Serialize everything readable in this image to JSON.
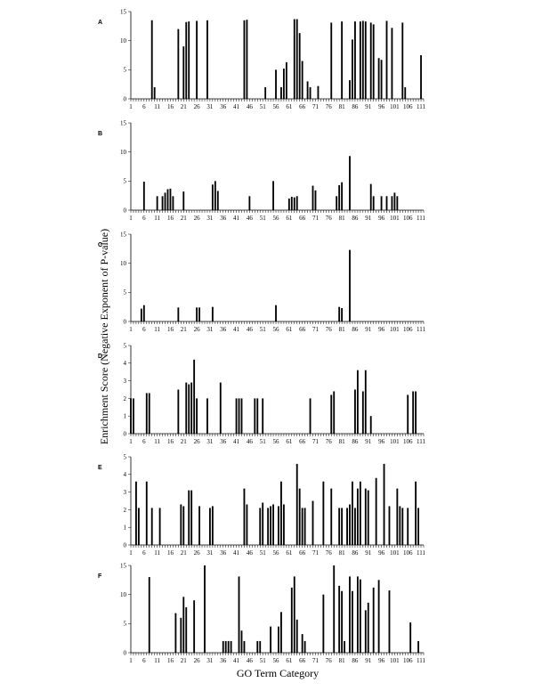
{
  "figure": {
    "xlabel": "GO Term Category",
    "ylabel": "Enrichment Score (Negative Exponent of P-value)",
    "x_tick_labels": [
      1,
      6,
      11,
      16,
      21,
      26,
      31,
      36,
      41,
      46,
      51,
      56,
      61,
      66,
      71,
      76,
      81,
      86,
      91,
      96,
      101,
      106,
      111
    ]
  },
  "chart_data": [
    {
      "panel": "A",
      "type": "bar",
      "xlim": [
        1,
        112
      ],
      "ylim": [
        0,
        15
      ],
      "yticks": [
        0,
        5,
        10,
        15
      ],
      "points": [
        [
          9,
          13.5
        ],
        [
          10,
          2
        ],
        [
          19,
          12
        ],
        [
          21,
          9
        ],
        [
          22,
          13.2
        ],
        [
          23,
          13.3
        ],
        [
          26,
          13.4
        ],
        [
          30,
          13.5
        ],
        [
          44,
          13.5
        ],
        [
          45,
          13.6
        ],
        [
          52,
          2
        ],
        [
          56,
          5
        ],
        [
          58,
          2
        ],
        [
          59,
          5.2
        ],
        [
          60,
          6.3
        ],
        [
          63,
          13.7
        ],
        [
          64,
          13.7
        ],
        [
          65,
          11.3
        ],
        [
          66,
          6.5
        ],
        [
          68,
          3
        ],
        [
          69,
          2
        ],
        [
          72,
          2.2
        ],
        [
          77,
          13.1
        ],
        [
          81,
          13.3
        ],
        [
          84,
          3.2
        ],
        [
          85,
          10.2
        ],
        [
          86,
          13.3
        ],
        [
          88,
          13.3
        ],
        [
          89,
          13.4
        ],
        [
          90,
          13.3
        ],
        [
          92,
          13.1
        ],
        [
          93,
          12.8
        ],
        [
          95,
          7
        ],
        [
          96,
          6.7
        ],
        [
          98,
          13.4
        ],
        [
          100,
          12.2
        ],
        [
          104,
          13.1
        ],
        [
          105,
          2
        ],
        [
          111,
          7.5
        ]
      ]
    },
    {
      "panel": "B",
      "type": "bar",
      "xlim": [
        1,
        112
      ],
      "ylim": [
        0,
        15
      ],
      "yticks": [
        0,
        5,
        10,
        15
      ],
      "points": [
        [
          6,
          4.9
        ],
        [
          11,
          2.4
        ],
        [
          13,
          2.4
        ],
        [
          14,
          3
        ],
        [
          15,
          3.6
        ],
        [
          16,
          3.7
        ],
        [
          17,
          2.4
        ],
        [
          21,
          3.2
        ],
        [
          32,
          4.4
        ],
        [
          33,
          5
        ],
        [
          34,
          3.3
        ],
        [
          46,
          2.4
        ],
        [
          55,
          5
        ],
        [
          61,
          2
        ],
        [
          62,
          2.3
        ],
        [
          63,
          2.2
        ],
        [
          64,
          2.4
        ],
        [
          70,
          4.2
        ],
        [
          71,
          3.4
        ],
        [
          79,
          2.4
        ],
        [
          80,
          4.3
        ],
        [
          81,
          4.8
        ],
        [
          84,
          9.3
        ],
        [
          92,
          4.5
        ],
        [
          93,
          2.4
        ],
        [
          96,
          2.4
        ],
        [
          98,
          2.4
        ],
        [
          100,
          2.4
        ],
        [
          101,
          3
        ],
        [
          102,
          2.4
        ]
      ]
    },
    {
      "panel": "C",
      "type": "bar",
      "xlim": [
        1,
        112
      ],
      "ylim": [
        0,
        15
      ],
      "yticks": [
        0,
        5,
        10,
        15
      ],
      "points": [
        [
          5,
          2.2
        ],
        [
          6,
          2.8
        ],
        [
          19,
          2.4
        ],
        [
          26,
          2.4
        ],
        [
          27,
          2.4
        ],
        [
          32,
          2.5
        ],
        [
          56,
          2.8
        ],
        [
          80,
          2.5
        ],
        [
          81,
          2.3
        ],
        [
          84,
          12.3
        ]
      ]
    },
    {
      "panel": "D",
      "type": "bar",
      "xlim": [
        1,
        112
      ],
      "ylim": [
        0,
        5
      ],
      "yticks": [
        0,
        1,
        2,
        3,
        4,
        5
      ],
      "points": [
        [
          1,
          2
        ],
        [
          2,
          2
        ],
        [
          7,
          2.3
        ],
        [
          8,
          2.3
        ],
        [
          19,
          2.5
        ],
        [
          22,
          2.9
        ],
        [
          23,
          2.8
        ],
        [
          24,
          2.9
        ],
        [
          25,
          4.2
        ],
        [
          26,
          2
        ],
        [
          30,
          2
        ],
        [
          35,
          2.9
        ],
        [
          41,
          2
        ],
        [
          42,
          2
        ],
        [
          43,
          2
        ],
        [
          48,
          2
        ],
        [
          49,
          2
        ],
        [
          51,
          2
        ],
        [
          69,
          2
        ],
        [
          77,
          2.2
        ],
        [
          78,
          2.4
        ],
        [
          86,
          2.5
        ],
        [
          87,
          3.6
        ],
        [
          89,
          2.4
        ],
        [
          90,
          3.6
        ],
        [
          92,
          1
        ],
        [
          106,
          2.2
        ],
        [
          108,
          2.4
        ],
        [
          109,
          2.4
        ]
      ]
    },
    {
      "panel": "E",
      "type": "bar",
      "xlim": [
        1,
        112
      ],
      "ylim": [
        0,
        5
      ],
      "yticks": [
        0,
        1,
        2,
        3,
        4,
        5
      ],
      "points": [
        [
          3,
          3.6
        ],
        [
          4,
          2.1
        ],
        [
          7,
          3.6
        ],
        [
          9,
          2.1
        ],
        [
          12,
          2.1
        ],
        [
          20,
          2.3
        ],
        [
          21,
          2.2
        ],
        [
          23,
          3.1
        ],
        [
          24,
          3.1
        ],
        [
          27,
          2.2
        ],
        [
          31,
          2.1
        ],
        [
          32,
          2.2
        ],
        [
          44,
          3.2
        ],
        [
          45,
          2.3
        ],
        [
          50,
          2.1
        ],
        [
          51,
          2.4
        ],
        [
          53,
          2.1
        ],
        [
          54,
          2.2
        ],
        [
          55,
          2.3
        ],
        [
          57,
          2.2
        ],
        [
          58,
          3.6
        ],
        [
          59,
          2.3
        ],
        [
          64,
          4.6
        ],
        [
          65,
          3.2
        ],
        [
          66,
          2.1
        ],
        [
          67,
          2.1
        ],
        [
          70,
          2.5
        ],
        [
          74,
          3.6
        ],
        [
          77,
          3.2
        ],
        [
          80,
          2.1
        ],
        [
          81,
          2.1
        ],
        [
          83,
          2.1
        ],
        [
          84,
          2.3
        ],
        [
          85,
          3.6
        ],
        [
          86,
          2.1
        ],
        [
          87,
          3.2
        ],
        [
          88,
          3.6
        ],
        [
          90,
          3.2
        ],
        [
          91,
          3.1
        ],
        [
          94,
          3.8
        ],
        [
          97,
          4.6
        ],
        [
          99,
          2.2
        ],
        [
          102,
          3.2
        ],
        [
          103,
          2.2
        ],
        [
          104,
          2.1
        ],
        [
          106,
          2.1
        ],
        [
          109,
          3.6
        ],
        [
          110,
          2.1
        ]
      ]
    },
    {
      "panel": "F",
      "type": "bar",
      "xlim": [
        1,
        112
      ],
      "ylim": [
        0,
        15
      ],
      "yticks": [
        0,
        5,
        10,
        15
      ],
      "points": [
        [
          8,
          13
        ],
        [
          18,
          6.8
        ],
        [
          20,
          6
        ],
        [
          21,
          9.6
        ],
        [
          22,
          7.8
        ],
        [
          25,
          9
        ],
        [
          29,
          15
        ],
        [
          36,
          2
        ],
        [
          37,
          2
        ],
        [
          38,
          2
        ],
        [
          39,
          2
        ],
        [
          42,
          13.1
        ],
        [
          43,
          3.8
        ],
        [
          44,
          2
        ],
        [
          49,
          2
        ],
        [
          50,
          2
        ],
        [
          54,
          4.5
        ],
        [
          57,
          4.5
        ],
        [
          58,
          7
        ],
        [
          62,
          11.2
        ],
        [
          63,
          13.1
        ],
        [
          64,
          5.7
        ],
        [
          66,
          3.2
        ],
        [
          67,
          2
        ],
        [
          74,
          10
        ],
        [
          78,
          15
        ],
        [
          80,
          11.5
        ],
        [
          81,
          10.6
        ],
        [
          82,
          2
        ],
        [
          84,
          13.1
        ],
        [
          85,
          10.6
        ],
        [
          87,
          13.1
        ],
        [
          88,
          12.6
        ],
        [
          90,
          7.3
        ],
        [
          91,
          8.6
        ],
        [
          93,
          11.2
        ],
        [
          95,
          12.5
        ],
        [
          99,
          10.7
        ],
        [
          107,
          5.2
        ],
        [
          110,
          2
        ]
      ]
    }
  ]
}
